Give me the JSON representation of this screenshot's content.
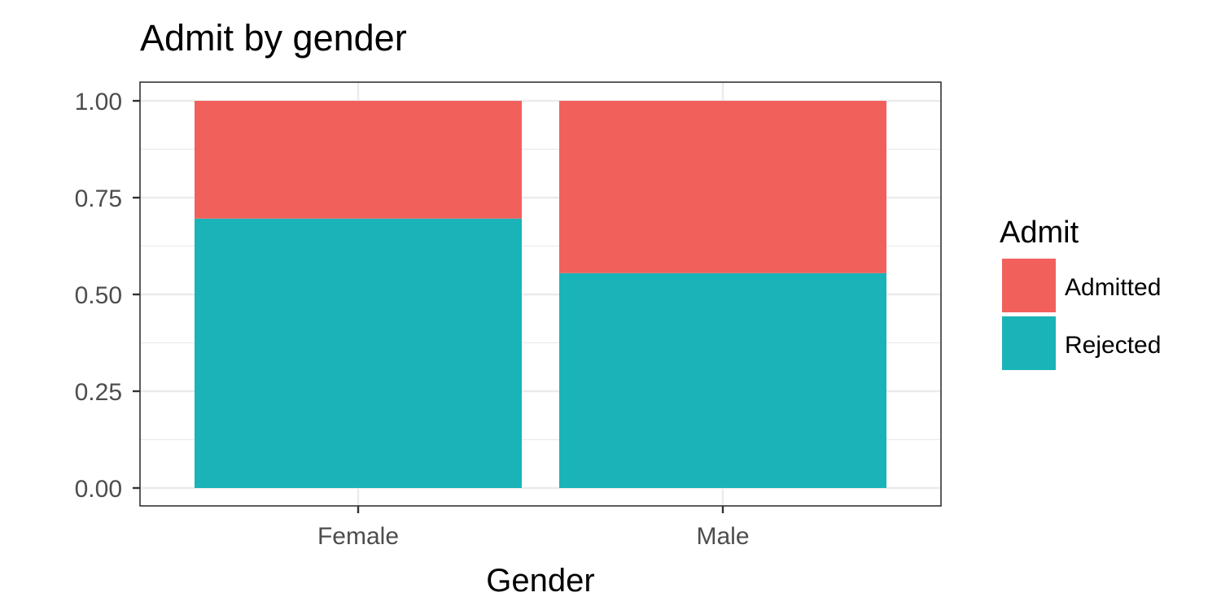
{
  "chart_data": {
    "type": "bar",
    "stacked": true,
    "title": "Admit by gender",
    "xlabel": "Gender",
    "ylabel": "",
    "categories": [
      "Female",
      "Male"
    ],
    "ylim": [
      0,
      1
    ],
    "yticks": [
      "0.00",
      "0.25",
      "0.50",
      "0.75",
      "1.00"
    ],
    "ytick_values": [
      0,
      0.25,
      0.5,
      0.75,
      1.0
    ],
    "grid": true,
    "legend": {
      "title": "Admit",
      "position": "right"
    },
    "series": [
      {
        "name": "Rejected",
        "color": "#1ab3b8",
        "values": [
          0.696,
          0.555
        ]
      },
      {
        "name": "Admitted",
        "color": "#f2605c",
        "values": [
          0.304,
          0.445
        ]
      }
    ],
    "legend_order": [
      "Admitted",
      "Rejected"
    ]
  }
}
